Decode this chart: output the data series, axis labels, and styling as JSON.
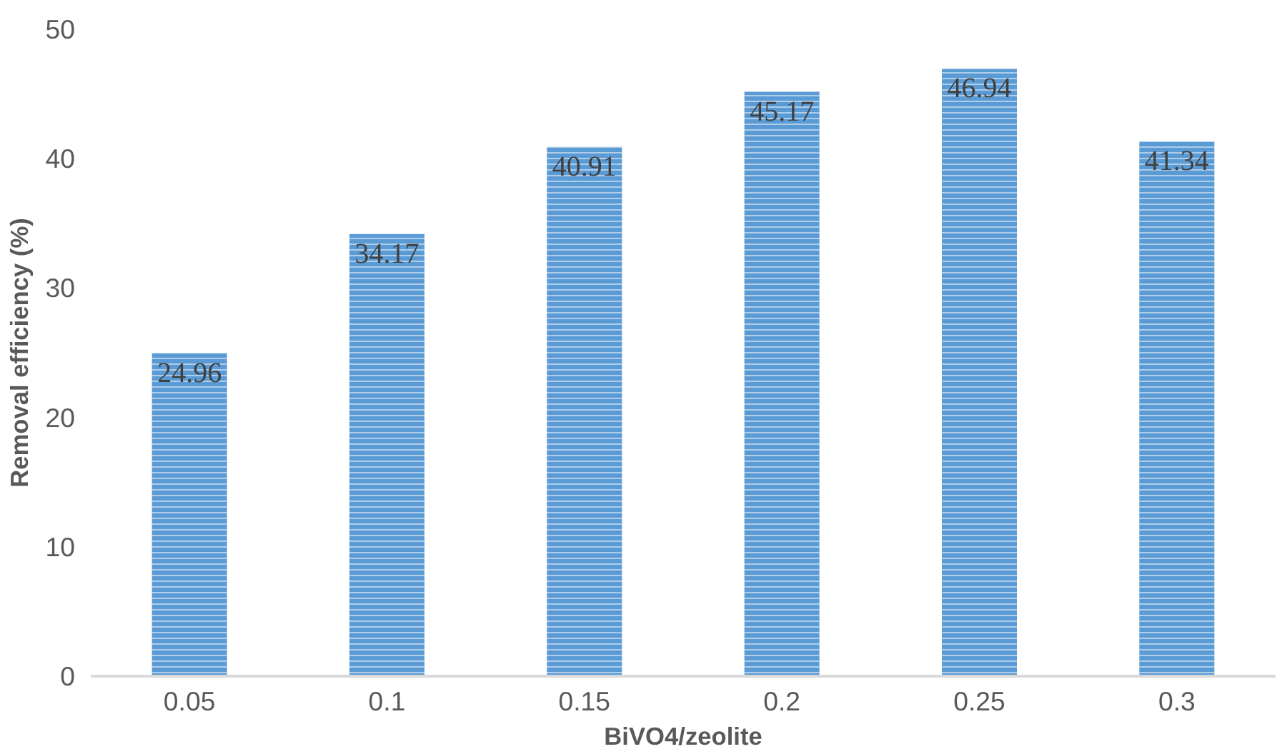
{
  "chart_data": {
    "type": "bar",
    "xlabel": "BiVO4/zeolite",
    "ylabel": "Removal efficiency (%)",
    "categories": [
      "0.05",
      "0.1",
      "0.15",
      "0.2",
      "0.25",
      "0.3"
    ],
    "values": [
      24.96,
      34.17,
      40.91,
      45.17,
      46.94,
      41.34
    ],
    "color": "#5b9bd5",
    "ylim": [
      0,
      50
    ],
    "yticks": [
      0,
      10,
      20,
      30,
      40,
      50
    ],
    "grid": false,
    "data_labels": true
  }
}
